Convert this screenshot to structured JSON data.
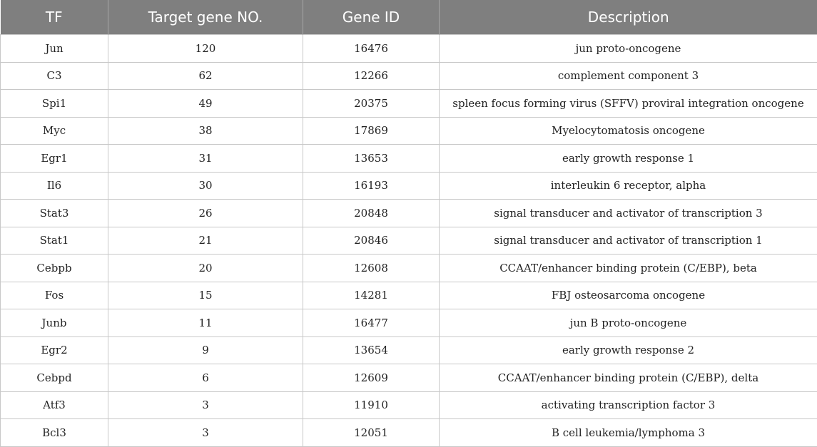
{
  "table": {
    "headers": [
      "TF",
      "Target gene NO.",
      "Gene ID",
      "Description"
    ],
    "rows": [
      [
        "Jun",
        "120",
        "16476",
        "jun proto-oncogene"
      ],
      [
        "C3",
        "62",
        "12266",
        "complement component 3"
      ],
      [
        "Spi1",
        "49",
        "20375",
        "spleen focus forming virus (SFFV) proviral integration oncogene"
      ],
      [
        "Myc",
        "38",
        "17869",
        "Myelocytomatosis oncogene"
      ],
      [
        "Egr1",
        "31",
        "13653",
        "early growth response 1"
      ],
      [
        "Il6",
        "30",
        "16193",
        "interleukin 6 receptor, alpha"
      ],
      [
        "Stat3",
        "26",
        "20848",
        "signal transducer and activator of transcription 3"
      ],
      [
        "Stat1",
        "21",
        "20846",
        "signal transducer and activator of transcription 1"
      ],
      [
        "Cebpb",
        "20",
        "12608",
        "CCAAT/enhancer binding protein (C/EBP), beta"
      ],
      [
        "Fos",
        "15",
        "14281",
        "FBJ osteosarcoma oncogene"
      ],
      [
        "Junb",
        "11",
        "16477",
        "jun B proto-oncogene"
      ],
      [
        "Egr2",
        "9",
        "13654",
        "early growth response 2"
      ],
      [
        "Cebpd",
        "6",
        "12609",
        "CCAAT/enhancer binding protein (C/EBP), delta"
      ],
      [
        "Atf3",
        "3",
        "11910",
        "activating transcription factor 3"
      ],
      [
        "Bcl3",
        "3",
        "12051",
        "B cell leukemia/lymphoma 3"
      ]
    ]
  },
  "colors": {
    "header_bg": "#7f7f7f",
    "header_text": "#ffffff",
    "grid": "#c8c8c8"
  }
}
